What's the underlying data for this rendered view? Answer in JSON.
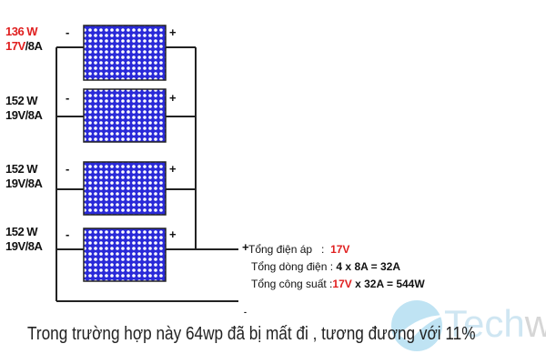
{
  "panels": [
    {
      "power": "136 W",
      "voltage": "17V",
      "current": "/8A",
      "highlight": true
    },
    {
      "power": "152 W",
      "voltage": "19V",
      "current": "/8A",
      "highlight": false
    },
    {
      "power": "152 W",
      "voltage": "19V",
      "current": "/8A",
      "highlight": false
    },
    {
      "power": "152 W",
      "voltage": "19V",
      "current": "/8A",
      "highlight": false
    }
  ],
  "signs": {
    "minus": "-",
    "plus": "+"
  },
  "summary": {
    "voltage_label": "Tổng điện áp   :",
    "voltage_value": "17V",
    "current_label": "Tổng dòng điện :",
    "current_value": "4 x 8A = 32A",
    "power_label": "Tổng công suất :",
    "power_red": "17V",
    "power_rest": " x 32A = 544W"
  },
  "caption": "Trong trường hợp này 64wp đã bị mất đi , tương đương với 11%",
  "logo": {
    "text": "Techway",
    "part1": "Tech",
    "part2": "way"
  },
  "colors": {
    "panel": "#2020d0",
    "red": "#e02020",
    "wire": "#222222"
  }
}
